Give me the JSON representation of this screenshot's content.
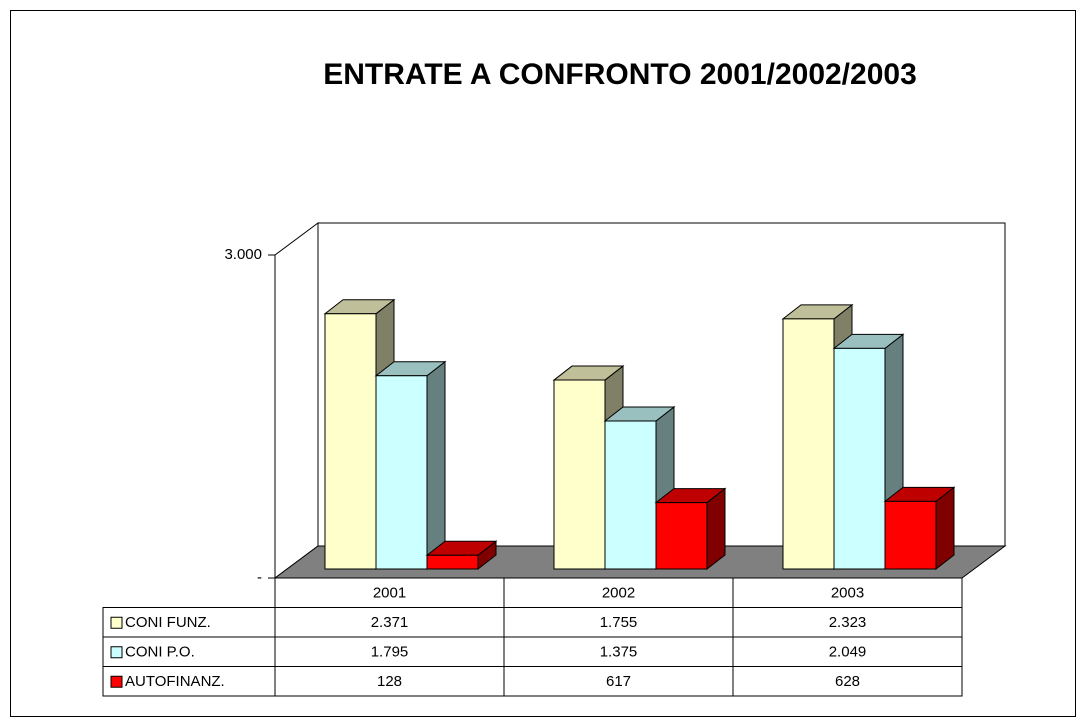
{
  "chart_data": {
    "type": "bar3d",
    "title": "ENTRATE A CONFRONTO 2001/2002/2003",
    "categories": [
      "2001",
      "2002",
      "2003"
    ],
    "series": [
      {
        "name": "CONI FUNZ.",
        "color": "#ffffcc",
        "values": [
          2371,
          1755,
          2323
        ],
        "value_labels": [
          "2.371",
          "1.755",
          "2.323"
        ]
      },
      {
        "name": "CONI P.O.",
        "color": "#ccffff",
        "values": [
          1795,
          1375,
          2049
        ],
        "value_labels": [
          "1.795",
          "1.375",
          "2.049"
        ]
      },
      {
        "name": "AUTOFINANZ.",
        "color": "#ff0000",
        "values": [
          128,
          617,
          628
        ],
        "value_labels": [
          "128",
          "617",
          "628"
        ]
      }
    ],
    "ylim": [
      0,
      3000
    ],
    "yticks": [
      {
        "value": 0,
        "label": "-"
      },
      {
        "value": 3000,
        "label": "3.000"
      }
    ]
  }
}
